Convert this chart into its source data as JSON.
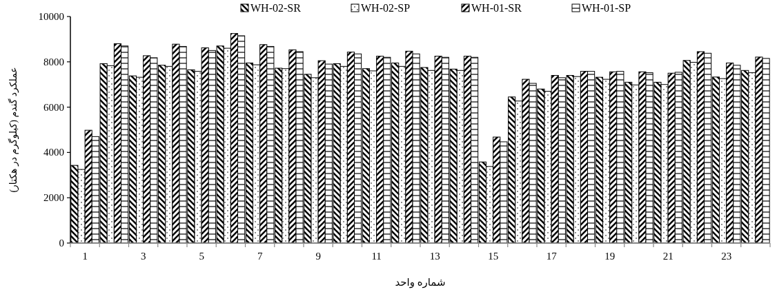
{
  "chart_data": {
    "type": "bar",
    "xlabel": "شماره واحد",
    "ylabel": "عملکرد گندم (کیلوگرم در هکتار)",
    "x": [
      1,
      2,
      3,
      4,
      5,
      6,
      7,
      8,
      9,
      10,
      11,
      12,
      13,
      14,
      15,
      16,
      17,
      18,
      19,
      20,
      21,
      22,
      23,
      24
    ],
    "xlim": [
      0.5,
      24.5
    ],
    "xticks": [
      {
        "value": 0.5,
        "label": null
      },
      1,
      {
        "value": 1.5,
        "label": null
      },
      {
        "value": 2.5,
        "label": null
      },
      3,
      {
        "value": 3.5,
        "label": null
      },
      {
        "value": 4.5,
        "label": null
      },
      5,
      {
        "value": 5.5,
        "label": null
      },
      {
        "value": 6.5,
        "label": null
      },
      7,
      {
        "value": 7.5,
        "label": null
      },
      {
        "value": 8.5,
        "label": null
      },
      9,
      {
        "value": 9.5,
        "label": null
      },
      {
        "value": 10.5,
        "label": null
      },
      11,
      {
        "value": 11.5,
        "label": null
      },
      {
        "value": 12.5,
        "label": null
      },
      13,
      {
        "value": 13.5,
        "label": null
      },
      {
        "value": 14.5,
        "label": null
      },
      15,
      {
        "value": 15.5,
        "label": null
      },
      {
        "value": 16.5,
        "label": null
      },
      17,
      {
        "value": 17.5,
        "label": null
      },
      {
        "value": 18.5,
        "label": null
      },
      19,
      {
        "value": 19.5,
        "label": null
      },
      {
        "value": 20.5,
        "label": null
      },
      21,
      {
        "value": 21.5,
        "label": null
      },
      {
        "value": 22.5,
        "label": null
      },
      23,
      {
        "value": 23.5,
        "label": null
      },
      {
        "value": 24.5,
        "label": null
      }
    ],
    "series": [
      {
        "name": "WH-02-SR",
        "color": "#000000",
        "values": [
          3430,
          7920,
          7380,
          7850,
          7650,
          8700,
          7950,
          7720,
          7450,
          7920,
          7700,
          7950,
          7750,
          7680,
          3580,
          6450,
          6800,
          7400,
          7320,
          7100,
          7100,
          8060,
          7330,
          7620
        ]
      },
      {
        "name": "WH-02-SP",
        "color": "#000000",
        "values": [
          3250,
          7830,
          7320,
          7800,
          7580,
          8600,
          7870,
          7700,
          7300,
          7800,
          7600,
          7800,
          7620,
          7620,
          3380,
          6270,
          6700,
          7350,
          7230,
          6980,
          7000,
          7980,
          7260,
          7520
        ]
      },
      {
        "name": "WH-01-SR",
        "color": "#000000",
        "values": [
          4980,
          8800,
          8270,
          8780,
          8620,
          9250,
          8760,
          8530,
          8050,
          8430,
          8250,
          8470,
          8250,
          8250,
          4680,
          7230,
          7400,
          7580,
          7560,
          7560,
          7500,
          8450,
          7950,
          8210
        ]
      },
      {
        "name": "WH-01-SP",
        "color": "#000000",
        "values": [
          4700,
          8700,
          8180,
          8680,
          8500,
          9150,
          8680,
          8450,
          7900,
          8350,
          8200,
          8350,
          8200,
          8200,
          4470,
          7050,
          7300,
          7580,
          7580,
          7520,
          7540,
          8380,
          7850,
          8150
        ]
      }
    ],
    "ylim": [
      0,
      10000
    ],
    "yticks": [
      0,
      2000,
      4000,
      6000,
      8000,
      10000
    ],
    "legend": "top"
  }
}
